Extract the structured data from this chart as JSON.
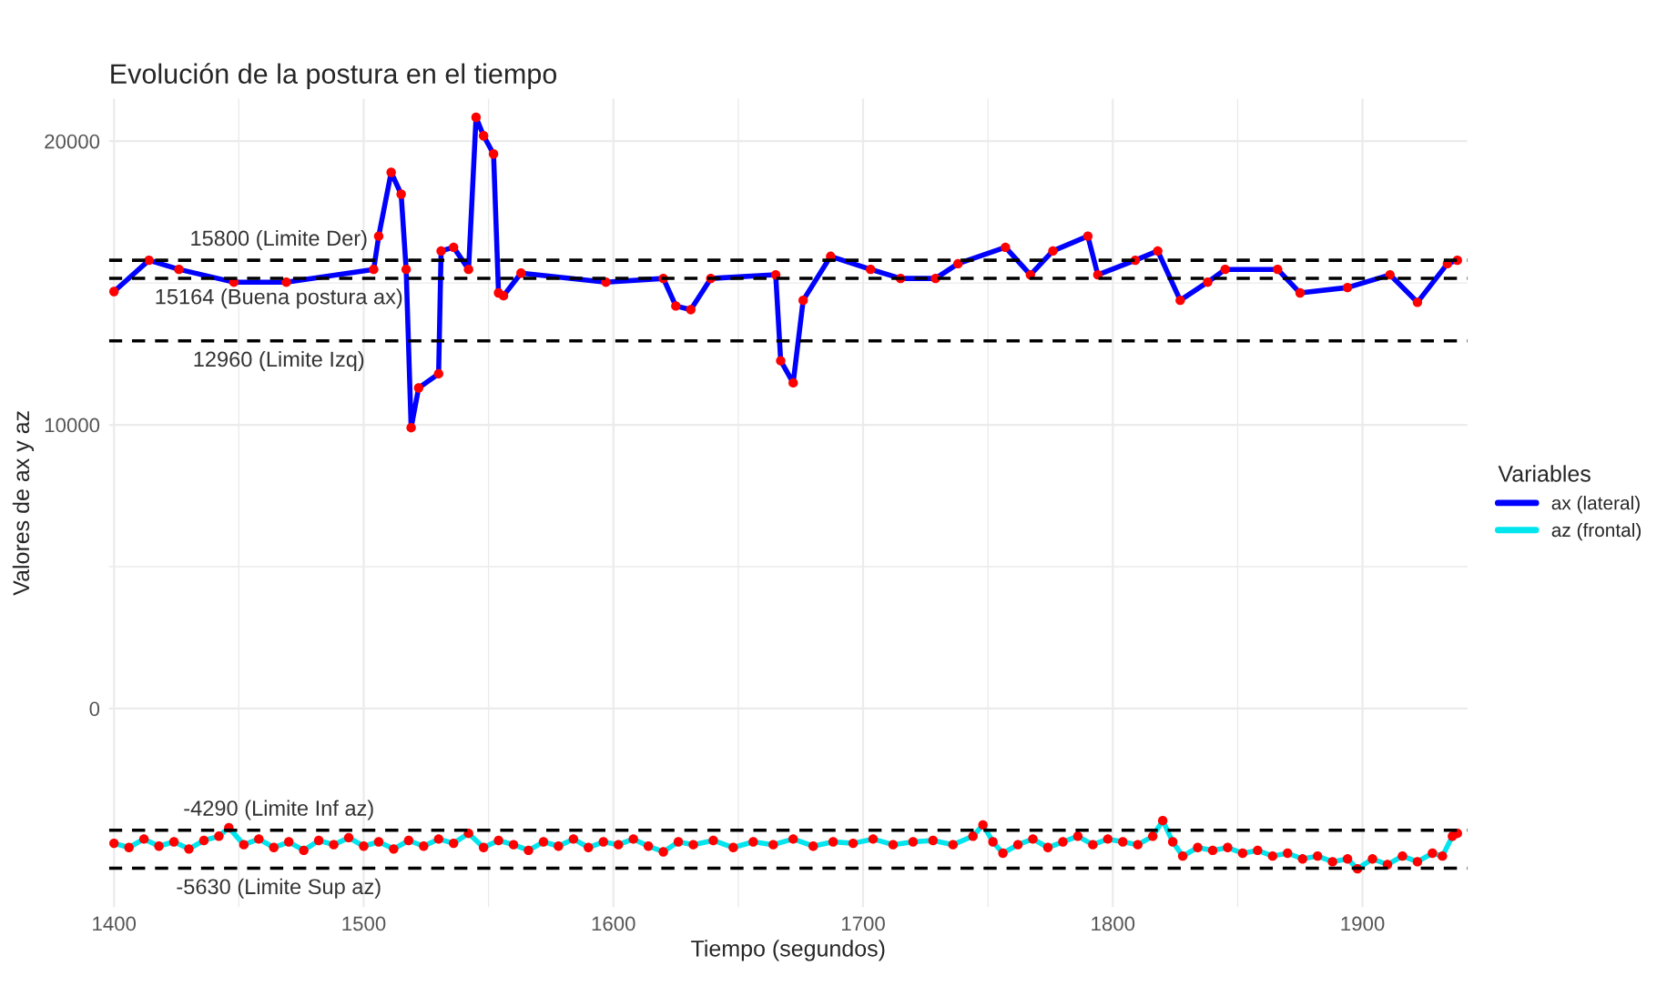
{
  "chart_data": {
    "type": "line",
    "title": "Evolución de la postura en el tiempo",
    "xlabel": "Tiempo (segundos)",
    "ylabel": "Valores de ax y az",
    "legend_title": "Variables",
    "xlim": [
      1398,
      1942
    ],
    "xticks": [
      1400,
      1500,
      1600,
      1700,
      1800,
      1900
    ],
    "ylim": [
      -7000,
      21500
    ],
    "yticks": [
      0,
      10000,
      20000
    ],
    "grid": true,
    "legend": "right",
    "ref_lines": [
      {
        "axis": "y",
        "value": 15800,
        "label": "15800 (Limite Der)",
        "color": "#000000",
        "line_style": "dashed"
      },
      {
        "axis": "y",
        "value": 15164,
        "label": "15164 (Buena postura ax)",
        "color": "#000000",
        "line_style": "dashed"
      },
      {
        "axis": "y",
        "value": 12960,
        "label": "12960 (Limite Izq)",
        "color": "#000000",
        "line_style": "dashed"
      },
      {
        "axis": "y",
        "value": -4290,
        "label": "-4290 (Limite Inf az)",
        "color": "#000000",
        "line_style": "dashed"
      },
      {
        "axis": "y",
        "value": -5630,
        "label": "-5630 (Limite Sup az)",
        "color": "#000000",
        "line_style": "dashed"
      }
    ],
    "series": [
      {
        "name": "ax (lateral)",
        "type": "line",
        "color": "#0000ff",
        "x": [
          1400,
          1414,
          1426,
          1448,
          1469,
          1504,
          1506,
          1511,
          1515,
          1517,
          1519,
          1522,
          1530,
          1531,
          1536,
          1542,
          1545,
          1548,
          1552,
          1554,
          1556,
          1563,
          1597,
          1620,
          1625,
          1631,
          1639,
          1665,
          1667,
          1672,
          1676,
          1687,
          1703,
          1715,
          1729,
          1738,
          1757,
          1767,
          1776,
          1790,
          1794,
          1809,
          1818,
          1827,
          1838,
          1845,
          1866,
          1875,
          1894,
          1911,
          1922,
          1934,
          1938
        ],
        "values": [
          14700,
          15800,
          15480,
          15030,
          15030,
          15480,
          16650,
          18900,
          18130,
          15480,
          9900,
          11300,
          11800,
          16130,
          16260,
          15480,
          20840,
          20190,
          19550,
          14650,
          14550,
          15350,
          15030,
          15160,
          14190,
          14060,
          15160,
          15290,
          12260,
          11480,
          14390,
          15940,
          15480,
          15160,
          15160,
          15680,
          16260,
          15290,
          16130,
          16650,
          15290,
          15800,
          16130,
          14390,
          15030,
          15480,
          15480,
          14650,
          14840,
          15290,
          14320,
          15680,
          15800
        ]
      },
      {
        "name": "az (frontal)",
        "type": "line",
        "color": "#00e5ee",
        "x": [
          1400,
          1406,
          1412,
          1418,
          1424,
          1430,
          1436,
          1442,
          1446,
          1452,
          1458,
          1464,
          1470,
          1476,
          1482,
          1488,
          1494,
          1500,
          1506,
          1512,
          1518,
          1524,
          1530,
          1536,
          1542,
          1548,
          1554,
          1560,
          1566,
          1572,
          1578,
          1584,
          1590,
          1596,
          1602,
          1608,
          1614,
          1620,
          1626,
          1632,
          1640,
          1648,
          1656,
          1664,
          1672,
          1680,
          1688,
          1696,
          1704,
          1712,
          1720,
          1728,
          1736,
          1744,
          1748,
          1752,
          1756,
          1762,
          1768,
          1774,
          1780,
          1786,
          1792,
          1798,
          1804,
          1810,
          1816,
          1820,
          1824,
          1828,
          1834,
          1840,
          1846,
          1852,
          1858,
          1864,
          1870,
          1876,
          1882,
          1888,
          1894,
          1898,
          1904,
          1910,
          1916,
          1922,
          1928,
          1932,
          1936,
          1938
        ],
        "values": [
          -4750,
          -4900,
          -4600,
          -4850,
          -4700,
          -4950,
          -4650,
          -4500,
          -4200,
          -4800,
          -4600,
          -4900,
          -4700,
          -5000,
          -4650,
          -4800,
          -4550,
          -4850,
          -4700,
          -4950,
          -4650,
          -4850,
          -4600,
          -4750,
          -4400,
          -4900,
          -4650,
          -4800,
          -5000,
          -4700,
          -4850,
          -4600,
          -4900,
          -4700,
          -4800,
          -4600,
          -4850,
          -5050,
          -4700,
          -4800,
          -4650,
          -4900,
          -4700,
          -4800,
          -4600,
          -4850,
          -4700,
          -4750,
          -4600,
          -4800,
          -4700,
          -4650,
          -4800,
          -4500,
          -4100,
          -4700,
          -5100,
          -4800,
          -4600,
          -4900,
          -4700,
          -4500,
          -4800,
          -4600,
          -4700,
          -4800,
          -4500,
          -3950,
          -4700,
          -5200,
          -4900,
          -5000,
          -4900,
          -5100,
          -5000,
          -5200,
          -5100,
          -5300,
          -5200,
          -5400,
          -5300,
          -5650,
          -5300,
          -5500,
          -5200,
          -5400,
          -5100,
          -5200,
          -4500,
          -4400
        ]
      },
      {
        "type": "scatter",
        "color": "#ff0000",
        "x": [
          1400,
          1414,
          1426,
          1448,
          1469,
          1504,
          1506,
          1511,
          1515,
          1517,
          1519,
          1522,
          1530,
          1531,
          1536,
          1542,
          1545,
          1548,
          1552,
          1554,
          1556,
          1563,
          1597,
          1620,
          1625,
          1631,
          1639,
          1665,
          1667,
          1672,
          1676,
          1687,
          1703,
          1715,
          1729,
          1738,
          1757,
          1767,
          1776,
          1790,
          1794,
          1809,
          1818,
          1827,
          1838,
          1845,
          1866,
          1875,
          1894,
          1911,
          1922,
          1934,
          1938
        ],
        "values": [
          14700,
          15800,
          15480,
          15030,
          15030,
          15480,
          16650,
          18900,
          18130,
          15480,
          9900,
          11300,
          11800,
          16130,
          16260,
          15480,
          20840,
          20190,
          19550,
          14650,
          14550,
          15350,
          15030,
          15160,
          14190,
          14060,
          15160,
          15290,
          12260,
          11480,
          14390,
          15940,
          15480,
          15160,
          15160,
          15680,
          16260,
          15290,
          16130,
          16650,
          15290,
          15800,
          16130,
          14390,
          15030,
          15480,
          15480,
          14650,
          14840,
          15290,
          14320,
          15680,
          15800
        ]
      },
      {
        "type": "scatter",
        "color": "#ff0000",
        "x": [
          1400,
          1406,
          1412,
          1418,
          1424,
          1430,
          1436,
          1442,
          1446,
          1452,
          1458,
          1464,
          1470,
          1476,
          1482,
          1488,
          1494,
          1500,
          1506,
          1512,
          1518,
          1524,
          1530,
          1536,
          1542,
          1548,
          1554,
          1560,
          1566,
          1572,
          1578,
          1584,
          1590,
          1596,
          1602,
          1608,
          1614,
          1620,
          1626,
          1632,
          1640,
          1648,
          1656,
          1664,
          1672,
          1680,
          1688,
          1696,
          1704,
          1712,
          1720,
          1728,
          1736,
          1744,
          1748,
          1752,
          1756,
          1762,
          1768,
          1774,
          1780,
          1786,
          1792,
          1798,
          1804,
          1810,
          1816,
          1820,
          1824,
          1828,
          1834,
          1840,
          1846,
          1852,
          1858,
          1864,
          1870,
          1876,
          1882,
          1888,
          1894,
          1898,
          1904,
          1910,
          1916,
          1922,
          1928,
          1932,
          1936,
          1938
        ],
        "values": [
          -4750,
          -4900,
          -4600,
          -4850,
          -4700,
          -4950,
          -4650,
          -4500,
          -4200,
          -4800,
          -4600,
          -4900,
          -4700,
          -5000,
          -4650,
          -4800,
          -4550,
          -4850,
          -4700,
          -4950,
          -4650,
          -4850,
          -4600,
          -4750,
          -4400,
          -4900,
          -4650,
          -4800,
          -5000,
          -4700,
          -4850,
          -4600,
          -4900,
          -4700,
          -4800,
          -4600,
          -4850,
          -5050,
          -4700,
          -4800,
          -4650,
          -4900,
          -4700,
          -4800,
          -4600,
          -4850,
          -4700,
          -4750,
          -4600,
          -4800,
          -4700,
          -4650,
          -4800,
          -4500,
          -4100,
          -4700,
          -5100,
          -4800,
          -4600,
          -4900,
          -4700,
          -4500,
          -4800,
          -4600,
          -4700,
          -4800,
          -4500,
          -3950,
          -4700,
          -5200,
          -4900,
          -5000,
          -4900,
          -5100,
          -5000,
          -5200,
          -5100,
          -5300,
          -5200,
          -5400,
          -5300,
          -5650,
          -5300,
          -5500,
          -5200,
          -5400,
          -5100,
          -5200,
          -4500,
          -4400
        ]
      }
    ]
  }
}
